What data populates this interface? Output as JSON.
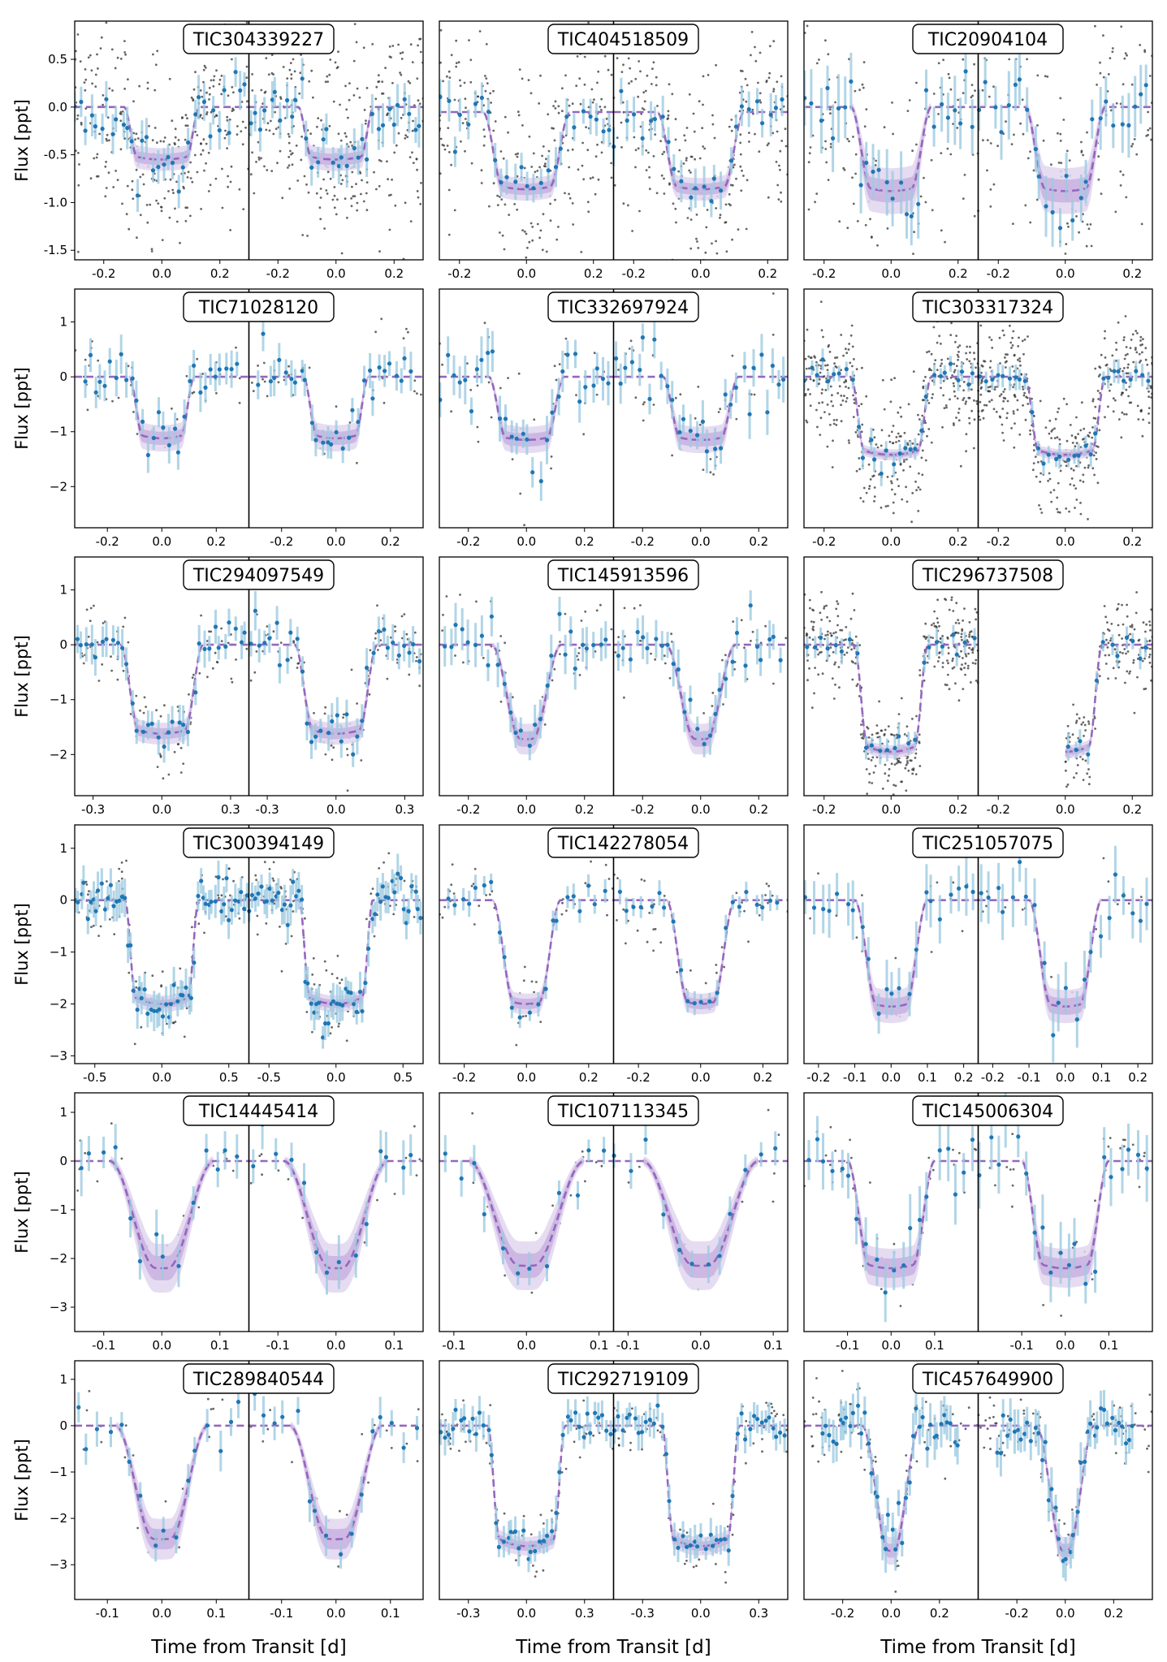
{
  "figure": {
    "ylabel": "Flux [ppt]",
    "xlabel": "Time from Transit [d]",
    "colors": {
      "binned": "#1f77b4",
      "errorbar": "#9ecae1",
      "raw": "#333333",
      "model": "#9467bd",
      "band_inner": "#c8b2e0",
      "band_outer": "#e2d6f0",
      "divider": "#000000"
    }
  },
  "chart_data": [
    {
      "type": "scatter",
      "title": "TIC304339227",
      "depth": 0.55,
      "t14": 0.26,
      "tin": 0.045,
      "xlim": [
        -0.3,
        0.3
      ],
      "ylim": [
        -1.6,
        0.9
      ],
      "xticks": [
        "-0.2",
        "0.0",
        "0.2"
      ],
      "xtick_vals": [
        -0.2,
        0.0,
        0.2
      ],
      "yticks": [
        "-1.5",
        "-1.0",
        "-0.5",
        "0.0",
        "0.5"
      ],
      "ytick_vals": [
        -1.5,
        -1.0,
        -0.5,
        0.0,
        0.5
      ],
      "raw_scatter": 0.55,
      "nraw": 320,
      "nbin": 34,
      "ebar": 0.18,
      "bscatter": 0.15,
      "band": 0.06,
      "row": 0,
      "col": 0
    },
    {
      "type": "scatter",
      "title": "TIC404518509",
      "depth": 0.68,
      "t14": 0.26,
      "tin": 0.06,
      "xlim": [
        -0.26,
        0.26
      ],
      "ylim": [
        -1.3,
        0.8
      ],
      "xticks": [
        "-0.2",
        "0.0",
        "0.2"
      ],
      "xtick_vals": [
        -0.2,
        0.0,
        0.2
      ],
      "yticks": [],
      "ytick_vals": [],
      "raw_scatter": 0.45,
      "nraw": 260,
      "nbin": 26,
      "ebar": 0.15,
      "bscatter": 0.12,
      "band": 0.05,
      "row": 0,
      "col": 1
    },
    {
      "type": "scatter",
      "title": "TIC20904104",
      "depth": 0.88,
      "t14": 0.24,
      "tin": 0.06,
      "xlim": [
        -0.26,
        0.26
      ],
      "ylim": [
        -1.6,
        0.9
      ],
      "xticks": [
        "-0.2",
        "0.0",
        "0.2"
      ],
      "xtick_vals": [
        -0.2,
        0.0,
        0.2
      ],
      "yticks": [],
      "ytick_vals": [],
      "raw_scatter": 0.6,
      "nraw": 140,
      "nbin": 26,
      "ebar": 0.28,
      "bscatter": 0.22,
      "band": 0.12,
      "row": 0,
      "col": 2
    },
    {
      "type": "scatter",
      "title": "TIC71028120",
      "depth": 1.12,
      "t14": 0.24,
      "tin": 0.05,
      "xlim": [
        -0.32,
        0.32
      ],
      "ylim": [
        -2.75,
        1.6
      ],
      "xticks": [
        "-0.2",
        "0.0",
        "0.2"
      ],
      "xtick_vals": [
        -0.2,
        0.0,
        0.2
      ],
      "yticks": [
        "−2",
        "−1",
        "0",
        "1"
      ],
      "ytick_vals": [
        -2,
        -1,
        0,
        1
      ],
      "raw_scatter": 0.45,
      "nraw": 40,
      "nbin": 30,
      "ebar": 0.28,
      "bscatter": 0.2,
      "band": 0.12,
      "row": 1,
      "col": 0
    },
    {
      "type": "scatter",
      "title": "TIC332697924",
      "depth": 1.15,
      "t14": 0.26,
      "tin": 0.06,
      "xlim": [
        -0.3,
        0.3
      ],
      "ylim": [
        -2.75,
        1.6
      ],
      "xticks": [
        "-0.2",
        "0.0",
        "0.2"
      ],
      "xtick_vals": [
        -0.2,
        0.0,
        0.2
      ],
      "yticks": [],
      "ytick_vals": [],
      "raw_scatter": 0.6,
      "nraw": 40,
      "nbin": 30,
      "ebar": 0.35,
      "bscatter": 0.3,
      "band": 0.12,
      "row": 1,
      "col": 1
    },
    {
      "type": "scatter",
      "title": "TIC303317324",
      "depth": 1.42,
      "t14": 0.24,
      "tin": 0.04,
      "xlim": [
        -0.26,
        0.26
      ],
      "ylim": [
        -2.75,
        1.6
      ],
      "xticks": [
        "-0.2",
        "0.0",
        "0.2"
      ],
      "xtick_vals": [
        -0.2,
        0.0,
        0.2
      ],
      "yticks": [],
      "ytick_vals": [],
      "raw_scatter": 0.55,
      "nraw": 380,
      "nbin": 30,
      "ebar": 0.18,
      "bscatter": 0.12,
      "band": 0.05,
      "row": 1,
      "col": 2
    },
    {
      "type": "scatter",
      "title": "TIC294097549",
      "depth": 1.62,
      "t14": 0.36,
      "tin": 0.08,
      "xlim": [
        -0.38,
        0.38
      ],
      "ylim": [
        -2.75,
        1.6
      ],
      "xticks": [
        "-0.3",
        "0.0",
        "0.3"
      ],
      "xtick_vals": [
        -0.3,
        0.0,
        0.3
      ],
      "yticks": [
        "−2",
        "−1",
        "0",
        "1"
      ],
      "ytick_vals": [
        -2,
        -1,
        0,
        1
      ],
      "raw_scatter": 0.35,
      "nraw": 90,
      "nbin": 34,
      "ebar": 0.28,
      "bscatter": 0.2,
      "band": 0.1,
      "row": 2,
      "col": 0
    },
    {
      "type": "scatter",
      "title": "TIC145913596",
      "depth": 1.72,
      "t14": 0.24,
      "tin": 0.1,
      "xlim": [
        -0.3,
        0.3
      ],
      "ylim": [
        -2.75,
        1.6
      ],
      "xticks": [
        "-0.2",
        "0.0",
        "0.2"
      ],
      "xtick_vals": [
        -0.2,
        0.0,
        0.2
      ],
      "yticks": [],
      "ytick_vals": [],
      "raw_scatter": 0.4,
      "nraw": 50,
      "nbin": 28,
      "ebar": 0.32,
      "bscatter": 0.25,
      "band": 0.14,
      "row": 2,
      "col": 1
    },
    {
      "type": "scatter",
      "title": "TIC296737508",
      "depth": 1.95,
      "t14": 0.22,
      "tin": 0.04,
      "xlim": [
        -0.26,
        0.26
      ],
      "ylim": [
        -2.75,
        1.6
      ],
      "xticks": [
        "-0.2",
        "0.0",
        "0.2"
      ],
      "xtick_vals": [
        -0.2,
        0.0,
        0.2
      ],
      "yticks": [],
      "ytick_vals": [],
      "raw_scatter": 0.4,
      "nraw": 360,
      "nbin": 24,
      "ebar": 0.2,
      "bscatter": 0.12,
      "band": 0.06,
      "row": 2,
      "col": 2
    },
    {
      "type": "scatter",
      "title": "TIC300394149",
      "depth": 2.0,
      "t14": 0.55,
      "tin": 0.08,
      "xlim": [
        -0.65,
        0.65
      ],
      "ylim": [
        -3.15,
        1.45
      ],
      "xticks": [
        "-0.5",
        "0.0",
        "0.5"
      ],
      "xtick_vals": [
        -0.5,
        0.0,
        0.5
      ],
      "yticks": [
        "−3",
        "−2",
        "−1",
        "0",
        "1"
      ],
      "ytick_vals": [
        -3,
        -2,
        -1,
        0,
        1
      ],
      "raw_scatter": 0.4,
      "nraw": 110,
      "nbin": 60,
      "ebar": 0.3,
      "bscatter": 0.22,
      "band": 0.08,
      "row": 3,
      "col": 0
    },
    {
      "type": "scatter",
      "title": "TIC142278054",
      "depth": 2.0,
      "t14": 0.22,
      "tin": 0.07,
      "xlim": [
        -0.28,
        0.28
      ],
      "ylim": [
        -3.15,
        1.45
      ],
      "xticks": [
        "-0.2",
        "0.0",
        "0.2"
      ],
      "xtick_vals": [
        -0.2,
        0.0,
        0.2
      ],
      "yticks": [],
      "ytick_vals": [],
      "raw_scatter": 0.35,
      "nraw": 45,
      "nbin": 22,
      "ebar": 0.2,
      "bscatter": 0.15,
      "band": 0.1,
      "row": 3,
      "col": 1
    },
    {
      "type": "scatter",
      "title": "TIC251057075",
      "depth": 2.05,
      "t14": 0.2,
      "tin": 0.06,
      "xlim": [
        -0.24,
        0.24
      ],
      "ylim": [
        -3.15,
        1.45
      ],
      "xticks": [
        "-0.2",
        "-0.1",
        "0.0",
        "0.1",
        "0.2"
      ],
      "xtick_vals": [
        -0.2,
        -0.1,
        0.0,
        0.1,
        0.2
      ],
      "yticks": [],
      "ytick_vals": [],
      "raw_scatter": 0.4,
      "nraw": 20,
      "nbin": 22,
      "ebar": 0.45,
      "bscatter": 0.3,
      "band": 0.16,
      "row": 3,
      "col": 2
    },
    {
      "type": "scatter",
      "title": "TIC14445414",
      "depth": 2.2,
      "t14": 0.18,
      "tin": 0.08,
      "xlim": [
        -0.15,
        0.15
      ],
      "ylim": [
        -3.5,
        1.4
      ],
      "xticks": [
        "-0.1",
        "0.0",
        "0.1"
      ],
      "xtick_vals": [
        -0.1,
        0.0,
        0.1
      ],
      "yticks": [
        "−3",
        "−2",
        "−1",
        "0",
        "1"
      ],
      "ytick_vals": [
        -3,
        -2,
        -1,
        0,
        1
      ],
      "raw_scatter": 0.4,
      "nraw": 20,
      "nbin": 14,
      "ebar": 0.45,
      "bscatter": 0.35,
      "band": 0.25,
      "row": 4,
      "col": 0
    },
    {
      "type": "scatter",
      "title": "TIC107113345",
      "depth": 2.15,
      "t14": 0.16,
      "tin": 0.07,
      "xlim": [
        -0.12,
        0.12
      ],
      "ylim": [
        -3.5,
        1.4
      ],
      "xticks": [
        "-0.1",
        "0.0",
        "0.1"
      ],
      "xtick_vals": [
        -0.1,
        0.0,
        0.1
      ],
      "yticks": [],
      "ytick_vals": [],
      "raw_scatter": 0.4,
      "nraw": 20,
      "nbin": 12,
      "ebar": 0.3,
      "bscatter": 0.3,
      "band": 0.25,
      "row": 4,
      "col": 1
    },
    {
      "type": "scatter",
      "title": "TIC145006304",
      "depth": 2.2,
      "t14": 0.2,
      "tin": 0.05,
      "xlim": [
        -0.2,
        0.2
      ],
      "ylim": [
        -3.5,
        1.4
      ],
      "xticks": [
        "-0.1",
        "0.0",
        "0.1"
      ],
      "xtick_vals": [
        -0.1,
        0.0,
        0.1
      ],
      "yticks": [],
      "ytick_vals": [],
      "raw_scatter": 0.5,
      "nraw": 40,
      "nbin": 20,
      "ebar": 0.55,
      "bscatter": 0.35,
      "band": 0.2,
      "row": 4,
      "col": 2
    },
    {
      "type": "scatter",
      "title": "TIC289840544",
      "depth": 2.45,
      "t14": 0.17,
      "tin": 0.07,
      "xlim": [
        -0.16,
        0.16
      ],
      "ylim": [
        -3.75,
        1.4
      ],
      "xticks": [
        "-0.1",
        "0.0",
        "0.1"
      ],
      "xtick_vals": [
        -0.1,
        0.0,
        0.1
      ],
      "yticks": [
        "−3",
        "−2",
        "−1",
        "0",
        "1"
      ],
      "ytick_vals": [
        -3,
        -2,
        -1,
        0,
        1
      ],
      "raw_scatter": 0.4,
      "nraw": 25,
      "nbin": 16,
      "ebar": 0.35,
      "bscatter": 0.3,
      "band": 0.22,
      "row": 5,
      "col": 0
    },
    {
      "type": "scatter",
      "title": "TIC292719109",
      "depth": 2.6,
      "t14": 0.4,
      "tin": 0.06,
      "xlim": [
        -0.45,
        0.45
      ],
      "ylim": [
        -3.75,
        1.4
      ],
      "xticks": [
        "-0.3",
        "0.0",
        "0.3"
      ],
      "xtick_vals": [
        -0.3,
        0.0,
        0.3
      ],
      "yticks": [],
      "ytick_vals": [],
      "raw_scatter": 0.35,
      "nraw": 80,
      "nbin": 44,
      "ebar": 0.3,
      "bscatter": 0.18,
      "band": 0.1,
      "row": 5,
      "col": 1
    },
    {
      "type": "scatter",
      "title": "TIC457649900",
      "depth": 2.7,
      "t14": 0.24,
      "tin": 0.11,
      "xlim": [
        -0.36,
        0.36
      ],
      "ylim": [
        -3.75,
        1.4
      ],
      "xticks": [
        "-0.2",
        "0.0",
        "0.2"
      ],
      "xtick_vals": [
        -0.2,
        0.0,
        0.2
      ],
      "yticks": [],
      "ytick_vals": [],
      "raw_scatter": 0.4,
      "nraw": 90,
      "nbin": 40,
      "ebar": 0.4,
      "bscatter": 0.3,
      "band": 0.15,
      "row": 5,
      "col": 2
    }
  ]
}
